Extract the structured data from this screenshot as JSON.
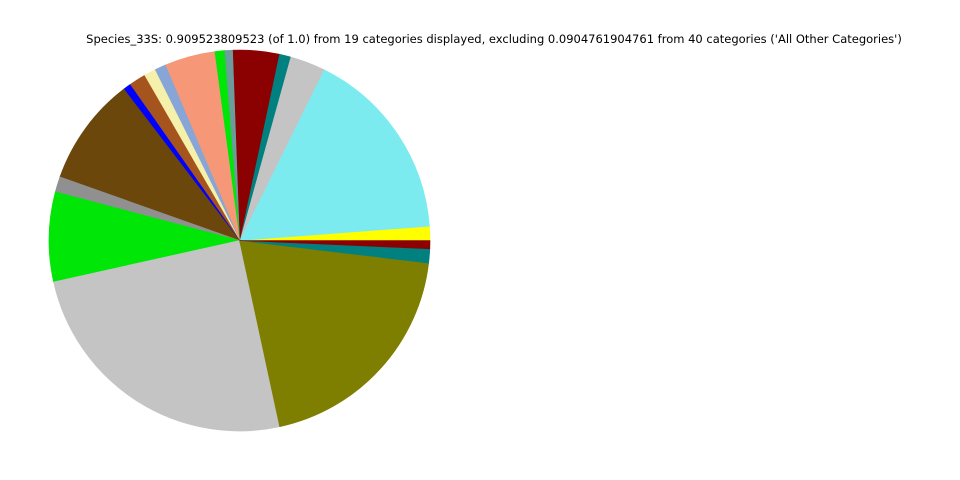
{
  "page": {
    "background_color": "#ffffff"
  },
  "chart_data": {
    "type": "pie",
    "title": "Species_33S: 0.909523809523 (of 1.0) from 19 categories displayed, excluding 0.0904761904761 from 40 categories ('All Other Categories')",
    "field_name": "Species_33S",
    "displayed_fraction": 0.909523809523,
    "displayed_fraction_of": 1.0,
    "num_categories_displayed": 19,
    "excluded_fraction": 0.0904761904761,
    "num_categories_excluded": 40,
    "excluded_label": "All Other Categories",
    "legend_position": "none",
    "grid": false,
    "start_angle_deg": 0,
    "direction": "counterclockwise",
    "slices": [
      {
        "name": "yellow",
        "color": "#FFFF00",
        "fraction_of_total": 0.0109
      },
      {
        "name": "light-cyan",
        "color": "#7BEBF0",
        "fraction_of_total": 0.1501
      },
      {
        "name": "silver",
        "color": "#C4C4C4",
        "fraction_of_total": 0.0273
      },
      {
        "name": "teal-upper",
        "color": "#018080",
        "fraction_of_total": 0.0088
      },
      {
        "name": "dark-red-top",
        "color": "#8B0000",
        "fraction_of_total": 0.0356
      },
      {
        "name": "cadet-gray",
        "color": "#6D9C9C",
        "fraction_of_total": 0.0063
      },
      {
        "name": "green-sliver",
        "color": "#00E606",
        "fraction_of_total": 0.0076
      },
      {
        "name": "salmon",
        "color": "#F69877",
        "fraction_of_total": 0.0387
      },
      {
        "name": "light-cornflower",
        "color": "#87A5D7",
        "fraction_of_total": 0.0088
      },
      {
        "name": "pale-yellow",
        "color": "#F5F0AA",
        "fraction_of_total": 0.0091
      },
      {
        "name": "sienna",
        "color": "#A5541E",
        "fraction_of_total": 0.0129
      },
      {
        "name": "blue",
        "color": "#0000FF",
        "fraction_of_total": 0.0058
      },
      {
        "name": "dark-olive-brown",
        "color": "#6B470B",
        "fraction_of_total": 0.0836
      },
      {
        "name": "gray",
        "color": "#909090",
        "fraction_of_total": 0.0119
      },
      {
        "name": "green",
        "color": "#00E606",
        "fraction_of_total": 0.0692
      },
      {
        "name": "light-gray",
        "color": "#C4C4C4",
        "fraction_of_total": 0.2264
      },
      {
        "name": "olive",
        "color": "#7E7E00",
        "fraction_of_total": 0.1794
      },
      {
        "name": "teal-lower",
        "color": "#018080",
        "fraction_of_total": 0.0109
      },
      {
        "name": "dark-red-right",
        "color": "#8B0000",
        "fraction_of_total": 0.0063
      }
    ]
  }
}
